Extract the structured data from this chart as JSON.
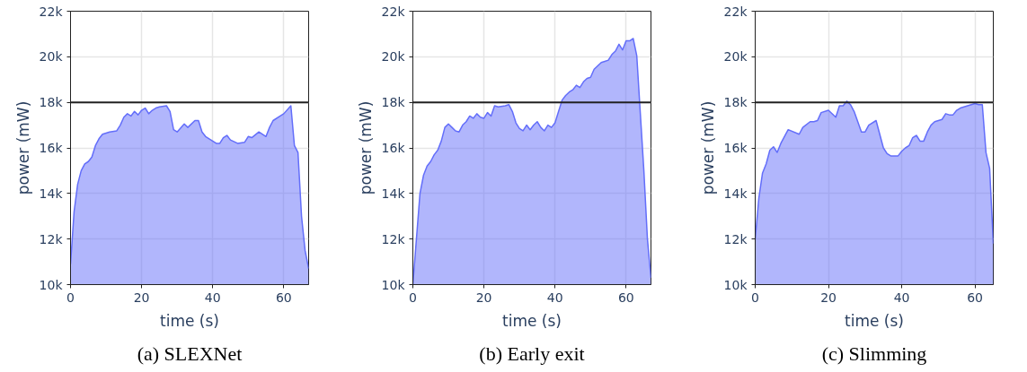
{
  "chart_data": [
    {
      "type": "area",
      "title": "(a) SLEXNet",
      "xlabel": "time (s)",
      "ylabel": "power (mW)",
      "color": "#636efa",
      "grid": true,
      "xlim": [
        0,
        67
      ],
      "xticks": [
        0,
        20,
        40,
        60
      ],
      "ylim": [
        10000,
        22000
      ],
      "yticks": [
        {
          "value": 10000,
          "label": "10k"
        },
        {
          "value": 12000,
          "label": "12k"
        },
        {
          "value": 14000,
          "label": "14k"
        },
        {
          "value": 16000,
          "label": "16k"
        },
        {
          "value": 18000,
          "label": "18k"
        },
        {
          "value": 20000,
          "label": "20k"
        },
        {
          "value": 22000,
          "label": "22k"
        }
      ],
      "ref_lines": [
        {
          "axis": "y",
          "value": 18000,
          "color": "#222222"
        }
      ],
      "x": [
        0,
        1,
        2,
        3,
        4,
        5,
        6,
        7,
        8,
        9,
        10,
        11,
        13,
        14,
        15,
        16,
        17,
        18,
        19,
        20,
        21,
        22,
        23,
        24,
        25,
        27,
        28,
        29,
        30,
        32,
        33,
        35,
        36,
        37,
        38,
        40,
        41,
        42,
        43,
        44,
        45,
        47,
        49,
        50,
        51,
        53,
        55,
        56,
        57,
        59,
        60,
        62,
        63,
        64,
        65,
        66,
        67
      ],
      "values": [
        10900,
        13200,
        14400,
        15000,
        15300,
        15400,
        15600,
        16100,
        16400,
        16600,
        16650,
        16700,
        16750,
        17000,
        17350,
        17500,
        17400,
        17600,
        17450,
        17650,
        17750,
        17500,
        17650,
        17750,
        17800,
        17850,
        17600,
        16800,
        16700,
        17050,
        16900,
        17200,
        17200,
        16700,
        16500,
        16300,
        16200,
        16200,
        16450,
        16550,
        16350,
        16200,
        16250,
        16500,
        16450,
        16700,
        16500,
        16900,
        17200,
        17400,
        17500,
        17850,
        16100,
        15800,
        13000,
        11500,
        10700
      ]
    },
    {
      "type": "area",
      "title": "(b) Early exit",
      "xlabel": "time (s)",
      "ylabel": "power (mW)",
      "color": "#636efa",
      "grid": true,
      "xlim": [
        0,
        67
      ],
      "xticks": [
        0,
        20,
        40,
        60
      ],
      "ylim": [
        10000,
        22000
      ],
      "yticks": [
        {
          "value": 10000,
          "label": "10k"
        },
        {
          "value": 12000,
          "label": "12k"
        },
        {
          "value": 14000,
          "label": "14k"
        },
        {
          "value": 16000,
          "label": "16k"
        },
        {
          "value": 18000,
          "label": "18k"
        },
        {
          "value": 20000,
          "label": "20k"
        },
        {
          "value": 22000,
          "label": "22k"
        }
      ],
      "ref_lines": [
        {
          "axis": "y",
          "value": 18000,
          "color": "#222222"
        }
      ],
      "x": [
        0,
        1,
        2,
        3,
        4,
        5,
        6,
        7,
        8,
        9,
        10,
        11,
        12,
        13,
        14,
        15,
        16,
        17,
        18,
        19,
        20,
        21,
        22,
        23,
        24,
        26,
        27,
        28,
        29,
        30,
        31,
        32,
        33,
        34,
        35,
        36,
        37,
        38,
        39,
        40,
        41,
        42,
        43,
        44,
        45,
        46,
        47,
        48,
        49,
        50,
        51,
        52,
        53,
        54,
        55,
        56,
        57,
        58,
        59,
        60,
        61,
        62,
        63,
        65,
        66,
        67
      ],
      "values": [
        10000,
        12000,
        14000,
        14800,
        15200,
        15400,
        15700,
        15900,
        16300,
        16900,
        17050,
        16900,
        16750,
        16700,
        17000,
        17150,
        17400,
        17300,
        17500,
        17350,
        17300,
        17550,
        17400,
        17850,
        17800,
        17850,
        17900,
        17600,
        17100,
        16850,
        16750,
        17000,
        16800,
        17000,
        17150,
        16900,
        16750,
        17000,
        16900,
        17100,
        17600,
        18100,
        18300,
        18450,
        18550,
        18750,
        18650,
        18900,
        19050,
        19100,
        19450,
        19600,
        19750,
        19800,
        19850,
        20100,
        20250,
        20550,
        20300,
        20700,
        20700,
        20800,
        20050,
        15000,
        12000,
        10300
      ]
    },
    {
      "type": "area",
      "title": "(c) Slimming",
      "xlabel": "time (s)",
      "ylabel": "power (mW)",
      "color": "#636efa",
      "grid": true,
      "xlim": [
        0,
        65
      ],
      "xticks": [
        0,
        20,
        40,
        60
      ],
      "ylim": [
        10000,
        22000
      ],
      "yticks": [
        {
          "value": 10000,
          "label": "10k"
        },
        {
          "value": 12000,
          "label": "12k"
        },
        {
          "value": 14000,
          "label": "14k"
        },
        {
          "value": 16000,
          "label": "16k"
        },
        {
          "value": 18000,
          "label": "18k"
        },
        {
          "value": 20000,
          "label": "20k"
        },
        {
          "value": 22000,
          "label": "22k"
        }
      ],
      "ref_lines": [
        {
          "axis": "y",
          "value": 18000,
          "color": "#222222"
        }
      ],
      "x": [
        0,
        1,
        2,
        3,
        4,
        5,
        6,
        7,
        9,
        12,
        13,
        15,
        16,
        17,
        18,
        20,
        22,
        23,
        24,
        25,
        26,
        27,
        29,
        30,
        31,
        33,
        35,
        36,
        37,
        39,
        40,
        41,
        42,
        43,
        44,
        45,
        46,
        47,
        48,
        49,
        50,
        51,
        52,
        53,
        54,
        55,
        56,
        58,
        60,
        61,
        62,
        63,
        64,
        65
      ],
      "values": [
        12000,
        13800,
        14900,
        15300,
        15900,
        16050,
        15800,
        16200,
        16800,
        16600,
        16900,
        17150,
        17150,
        17200,
        17550,
        17650,
        17350,
        17850,
        17850,
        18050,
        17900,
        17600,
        16700,
        16700,
        17000,
        17200,
        16000,
        15750,
        15650,
        15650,
        15850,
        16000,
        16100,
        16450,
        16550,
        16300,
        16300,
        16700,
        17000,
        17150,
        17200,
        17250,
        17500,
        17450,
        17450,
        17650,
        17750,
        17850,
        17950,
        17900,
        17900,
        15800,
        15100,
        11800
      ]
    }
  ]
}
